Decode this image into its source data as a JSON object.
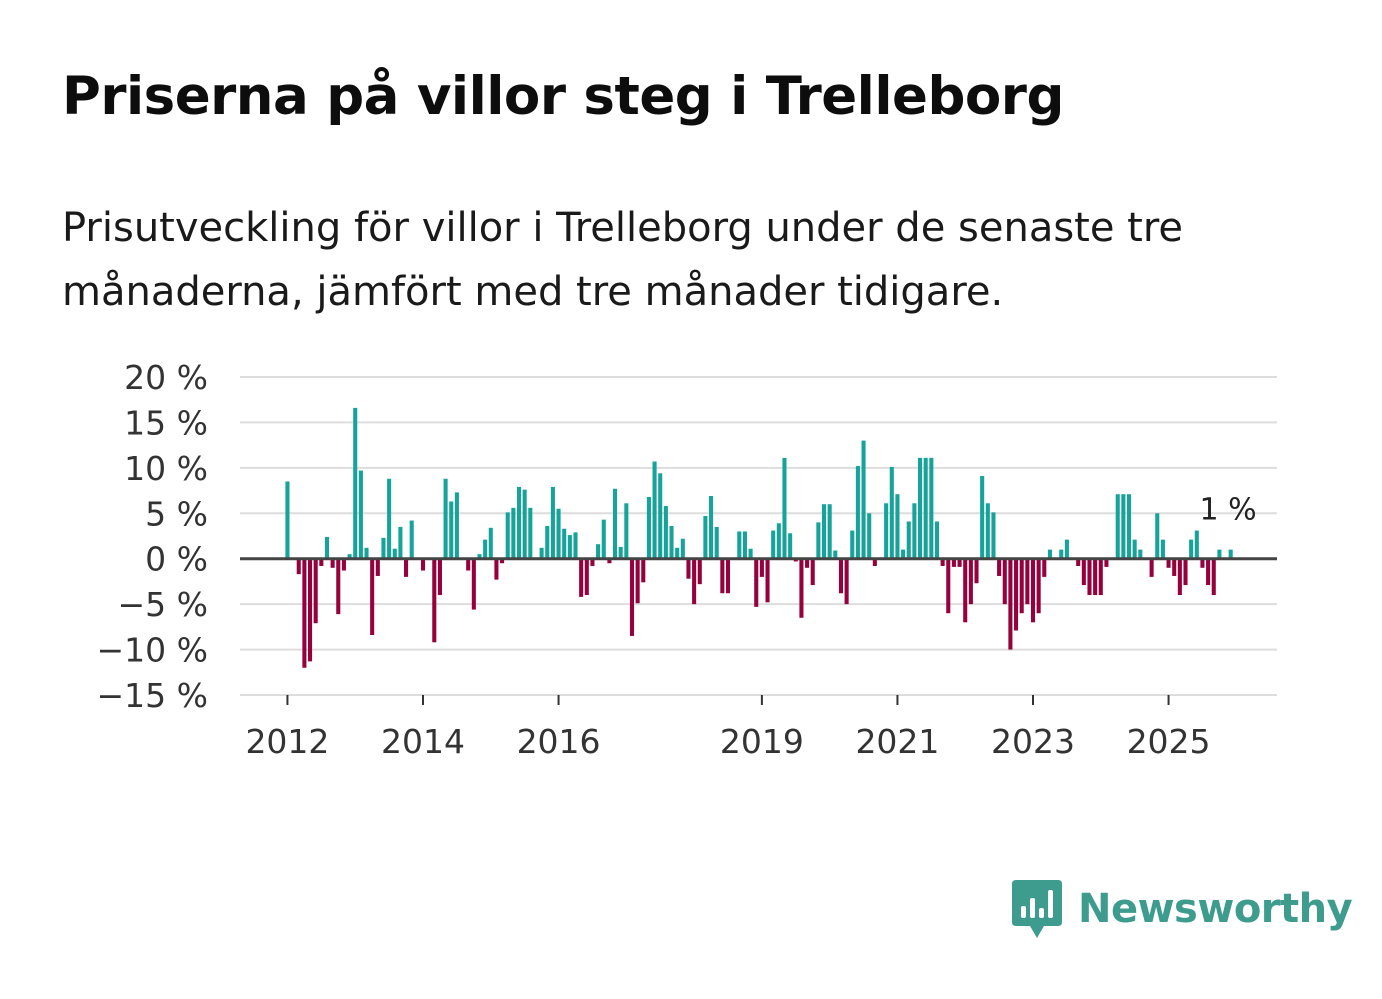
{
  "title": "Priserna på villor steg i Trelleborg",
  "subtitle": "Prisutveckling för villor i Trelleborg under de senaste tre månaderna, jämfört med tre månader tidigare.",
  "logo": {
    "text": "Newsworthy",
    "icon": "newsworthy-logo-icon"
  },
  "colors": {
    "positive": "#15a39a",
    "negative": "#96003c",
    "grid": "#dddddd",
    "zero": "#444444",
    "brand": "#3d9c8e"
  },
  "chart_data": {
    "type": "bar",
    "title": "Priserna på villor steg i Trelleborg",
    "xlabel": "",
    "ylabel": "",
    "unit": "%",
    "ylim": [
      -15,
      20
    ],
    "yticks": [
      20,
      15,
      10,
      5,
      0,
      -5,
      -10,
      -15
    ],
    "ytick_labels": [
      "20 %",
      "15 %",
      "10 %",
      "5 %",
      "0 %",
      "−5 %",
      "−10 %",
      "−15 %"
    ],
    "xlim": [
      2011.3,
      2026.6
    ],
    "xticks": [
      2012,
      2014,
      2016,
      2019,
      2021,
      2023,
      2025
    ],
    "xtick_labels": [
      "2012",
      "2014",
      "2016",
      "2019",
      "2021",
      "2023",
      "2025"
    ],
    "x_start": 2012.0,
    "x_step": 0.0833333,
    "grid": true,
    "legend": "none",
    "last_value_label": "1 %",
    "values": [
      8.5,
      0,
      -1.7,
      -12,
      -11.3,
      -7.1,
      -0.8,
      2.4,
      -1,
      -6.1,
      -1.3,
      0.5,
      16.6,
      9.7,
      1.2,
      -8.4,
      -1.9,
      2.3,
      8.8,
      1.1,
      3.5,
      -2,
      4.2,
      0,
      -1.3,
      0,
      -9.2,
      -4,
      8.8,
      6.3,
      7.3,
      0,
      -1.3,
      -5.6,
      0.5,
      2.1,
      3.4,
      -2.3,
      -0.5,
      5.1,
      5.6,
      7.9,
      7.6,
      5.6,
      0,
      1.2,
      3.6,
      7.9,
      5.5,
      3.3,
      2.6,
      2.9,
      -4.2,
      -4,
      -0.8,
      1.6,
      4.3,
      -0.5,
      7.7,
      1.3,
      6.1,
      -8.5,
      -4.9,
      -2.6,
      6.8,
      10.7,
      9.4,
      5.8,
      3.6,
      1.2,
      2.2,
      -2.2,
      -5,
      -2.8,
      4.7,
      6.9,
      3.5,
      -3.8,
      -3.8,
      0,
      3,
      3,
      1.1,
      -5.3,
      -2,
      -4.8,
      3.1,
      3.9,
      11.1,
      2.8,
      -0.3,
      -6.5,
      -1,
      -2.9,
      4,
      6,
      6,
      0.9,
      -3.8,
      -5,
      3.1,
      10.2,
      13,
      5,
      -0.8,
      0,
      6.1,
      10.1,
      7.1,
      1,
      4.1,
      6.1,
      11.1,
      11.1,
      11.1,
      4.1,
      -0.8,
      -6,
      -0.9,
      -0.9,
      -7,
      -5,
      -2.7,
      9.1,
      6.1,
      5.1,
      -1.9,
      -5,
      -10,
      -7.9,
      -6,
      -5,
      -7,
      -6,
      -2,
      1,
      0,
      1,
      2.1,
      0,
      -0.8,
      -2.9,
      -4,
      -4,
      -4,
      -0.9,
      0,
      7.1,
      7.1,
      7.1,
      2.1,
      1,
      0,
      -2,
      5,
      2.1,
      -1,
      -1.9,
      -4,
      -2.9,
      2.1,
      3.1,
      -1,
      -2.9,
      -4,
      1,
      0,
      1
    ]
  }
}
